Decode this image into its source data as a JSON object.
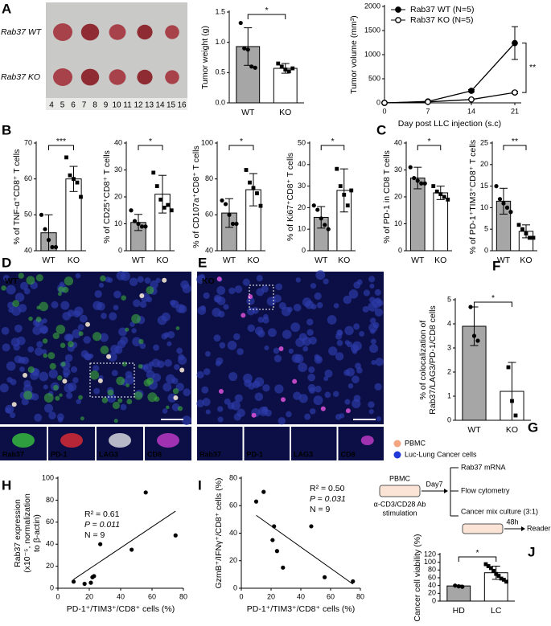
{
  "figure": {
    "panel_labels": [
      "A",
      "B",
      "C",
      "D",
      "E",
      "F",
      "G",
      "H",
      "I",
      "J"
    ],
    "photo": {
      "row_labels": [
        "Rab37 WT",
        "Rab37 KO"
      ],
      "ruler": [
        4,
        5,
        6,
        7,
        8,
        9,
        10,
        11,
        12,
        13,
        14,
        15,
        16
      ]
    },
    "microscopy": [
      {
        "label": "WT",
        "channels": [
          "Rab37",
          "PD-1",
          "LAG3",
          "CD8"
        ]
      },
      {
        "label": "KO",
        "channels": [
          "Rab37",
          "PD-1",
          "LAG3",
          "CD8"
        ]
      }
    ],
    "diagram": {
      "legend": [
        "PBMC",
        "Luc-Lung Cancer cells"
      ],
      "plate": "PBMC",
      "stimulation": [
        "α-CD3/CD28 Ab",
        "stimulation"
      ],
      "day": "Day7",
      "readouts": [
        "Rab37 mRNA",
        "Flow cytometry",
        "Cancer mix culture (3:1)"
      ],
      "time": "48h",
      "reader": "Reader"
    }
  },
  "chart_data": [
    {
      "type": "bar",
      "ylabel": "Tumor weight (g)",
      "categories": [
        "WT",
        "KO"
      ],
      "values": [
        0.93,
        0.57
      ],
      "errors": [
        0.31,
        0.08
      ],
      "points": [
        [
          1.32,
          0.9,
          0.88,
          0.6,
          0.58
        ],
        [
          0.65,
          0.6,
          0.55,
          0.52,
          0.57
        ]
      ],
      "colors": [
        "#a6a6a6",
        "#ffffff"
      ],
      "ylim": [
        0,
        1.5
      ],
      "yticks": [
        {
          "value": 0,
          "label": "0.0"
        },
        {
          "value": 0.5,
          "label": "0.5"
        },
        {
          "value": 1,
          "label": "1.0"
        },
        {
          "value": 1.5,
          "label": "1.5"
        }
      ],
      "significance": "*"
    },
    {
      "type": "line",
      "ylabel": "Tumor volume (mm³)",
      "xlabel": "Day post LLC injection (s.c)",
      "x": [
        0,
        7,
        14,
        21
      ],
      "series": [
        {
          "name": "Rab37 WT (N=5)",
          "color": "#000000",
          "marker": "filled",
          "values": [
            0,
            30,
            250,
            1240
          ],
          "errors": [
            0,
            8,
            25,
            340
          ]
        },
        {
          "name": "Rab37 KO (N=5)",
          "color": "#000000",
          "marker": "open",
          "values": [
            0,
            20,
            70,
            215
          ],
          "errors": [
            0,
            4,
            10,
            25
          ]
        }
      ],
      "xlim": [
        0,
        21
      ],
      "xticks": [
        0,
        7,
        14,
        21
      ],
      "ylim": [
        0,
        2000
      ],
      "yticks": [
        0,
        500,
        1000,
        1500,
        2000
      ],
      "legend": "upper left",
      "significance": "**"
    },
    {
      "type": "bar",
      "ylabel": "% of TNF-α⁺CD8⁺ T cells",
      "categories": [
        "WT",
        "KO"
      ],
      "values": [
        45,
        60
      ],
      "errors": [
        5,
        3.5
      ],
      "points": [
        [
          50,
          46,
          43,
          41,
          41
        ],
        [
          66,
          61,
          60,
          59,
          55
        ]
      ],
      "colors": [
        "#a6a6a6",
        "#ffffff"
      ],
      "ylim": [
        40,
        70
      ],
      "yticks": [
        40,
        50,
        60,
        70
      ],
      "significance": "***"
    },
    {
      "type": "bar",
      "ylabel": "% of CD25⁺CD8⁺ T cells",
      "categories": [
        "WT",
        "KO"
      ],
      "values": [
        10.5,
        21
      ],
      "errors": [
        3,
        7
      ],
      "points": [
        [
          15,
          11,
          10,
          9,
          9
        ],
        [
          29,
          24,
          19,
          16,
          17,
          15
        ]
      ],
      "colors": [
        "#a6a6a6",
        "#ffffff"
      ],
      "ylim": [
        0,
        40
      ],
      "yticks": [
        0,
        10,
        20,
        30,
        40
      ],
      "significance": "*"
    },
    {
      "type": "bar",
      "ylabel": "% of CD107a⁺CD8⁺ T cells",
      "categories": [
        "WT",
        "KO"
      ],
      "values": [
        61,
        74
      ],
      "errors": [
        8,
        9
      ],
      "points": [
        [
          68,
          66,
          60,
          55,
          55
        ],
        [
          85,
          78,
          75,
          72,
          65
        ]
      ],
      "colors": [
        "#a6a6a6",
        "#ffffff"
      ],
      "ylim": [
        40,
        100
      ],
      "yticks": [
        40,
        60,
        80,
        100
      ],
      "significance": "*"
    },
    {
      "type": "bar",
      "ylabel": "% of Ki67⁺CD8⁺ T cells",
      "categories": [
        "WT",
        "KO"
      ],
      "values": [
        15.5,
        28
      ],
      "errors": [
        5,
        10
      ],
      "points": [
        [
          21,
          19,
          15,
          12,
          10
        ],
        [
          38,
          30,
          26,
          21,
          28
        ]
      ],
      "colors": [
        "#a6a6a6",
        "#ffffff"
      ],
      "ylim": [
        0,
        50
      ],
      "yticks": [
        0,
        10,
        20,
        30,
        40,
        50
      ],
      "significance": "*"
    },
    {
      "type": "bar",
      "ylabel": "% of PD-1 in CD8 T cells",
      "categories": [
        "WT",
        "KO"
      ],
      "values": [
        27,
        21.5
      ],
      "errors": [
        4,
        2.5
      ],
      "points": [
        [
          31,
          27,
          26,
          25,
          25
        ],
        [
          24,
          22,
          21,
          20,
          19
        ]
      ],
      "colors": [
        "#a6a6a6",
        "#ffffff"
      ],
      "ylim": [
        0,
        40
      ],
      "yticks": [
        0,
        10,
        20,
        30,
        40
      ],
      "significance": "*"
    },
    {
      "type": "bar",
      "ylabel": "% of PD-1⁺TIM3⁺CD8⁺ T cells",
      "categories": [
        "WT",
        "KO"
      ],
      "values": [
        11.5,
        4.5
      ],
      "errors": [
        3,
        1.5
      ],
      "points": [
        [
          15,
          12,
          11,
          10,
          9
        ],
        [
          6,
          5,
          4,
          3,
          3
        ]
      ],
      "colors": [
        "#a6a6a6",
        "#ffffff"
      ],
      "ylim": [
        0,
        25
      ],
      "yticks": [
        0,
        5,
        10,
        15,
        20,
        25
      ],
      "significance": "**"
    },
    {
      "type": "bar",
      "ylabel": [
        "% of colocalization of",
        "Rab37/LAG3/PD-1/CD8 cells"
      ],
      "categories": [
        "WT",
        "KO"
      ],
      "values": [
        3.9,
        1.2
      ],
      "errors": [
        0.8,
        1.2
      ],
      "points": [
        [
          4.7,
          3.5,
          3.3
        ],
        [
          2.2,
          0.8,
          0.2
        ]
      ],
      "colors": [
        "#a6a6a6",
        "#ffffff"
      ],
      "ylim": [
        0,
        5
      ],
      "yticks": [
        0,
        1,
        2,
        3,
        4,
        5
      ],
      "significance": "*"
    },
    {
      "type": "scatter",
      "ylabel": [
        "Rab37 expression",
        "(x10⁻⁵, normalization",
        "to β-actin)"
      ],
      "xlabel": "PD-1⁺/TIM3⁺/CD8⁺ cells (%)",
      "x": [
        10,
        17,
        21,
        22,
        23,
        27,
        47,
        56,
        75
      ],
      "y": [
        6,
        4,
        5,
        10,
        11,
        40,
        35,
        87,
        48
      ],
      "color": "#000000",
      "trendline": {
        "x": [
          10,
          75
        ],
        "y": [
          8,
          70
        ]
      },
      "annotations": [
        "R² = 0.61",
        "P = 0.011",
        "N = 9"
      ],
      "xlim": [
        0,
        80
      ],
      "xticks": [
        0,
        20,
        40,
        60,
        80
      ],
      "ylim": [
        0,
        100
      ],
      "yticks": [
        0,
        20,
        40,
        60,
        80,
        100
      ]
    },
    {
      "type": "scatter",
      "ylabel": "GzmB⁺/IFNγ⁺/CD8⁺ cells (%)",
      "xlabel": "PD-1⁺/TIM3⁺/CD8⁺ cells (%)",
      "x": [
        10,
        15,
        21,
        22,
        24,
        28,
        47,
        56,
        75
      ],
      "y": [
        63,
        70,
        35,
        45,
        27,
        15,
        45,
        8,
        5
      ],
      "color": "#000000",
      "trendline": {
        "x": [
          10,
          75
        ],
        "y": [
          53,
          3
        ]
      },
      "annotations": [
        "R² = 0.50",
        "P = 0.031",
        "N = 9"
      ],
      "xlim": [
        0,
        80
      ],
      "xticks": [
        0,
        20,
        40,
        60,
        80
      ],
      "ylim": [
        0,
        80
      ],
      "yticks": [
        0,
        20,
        40,
        60,
        80
      ]
    },
    {
      "type": "bar",
      "ylabel": "Cancer cell viability (%)",
      "categories": [
        "HD",
        "LC"
      ],
      "values": [
        39,
        73
      ],
      "errors": [
        2,
        17
      ],
      "points": [
        [
          40,
          38,
          37
        ],
        [
          95,
          90,
          85,
          78,
          70,
          65,
          58,
          55,
          50
        ]
      ],
      "colors": [
        "#a6a6a6",
        "#ffffff"
      ],
      "ylim": [
        0,
        120
      ],
      "yticks": [
        0,
        20,
        40,
        60,
        80,
        100,
        120
      ],
      "significance": "*"
    }
  ]
}
